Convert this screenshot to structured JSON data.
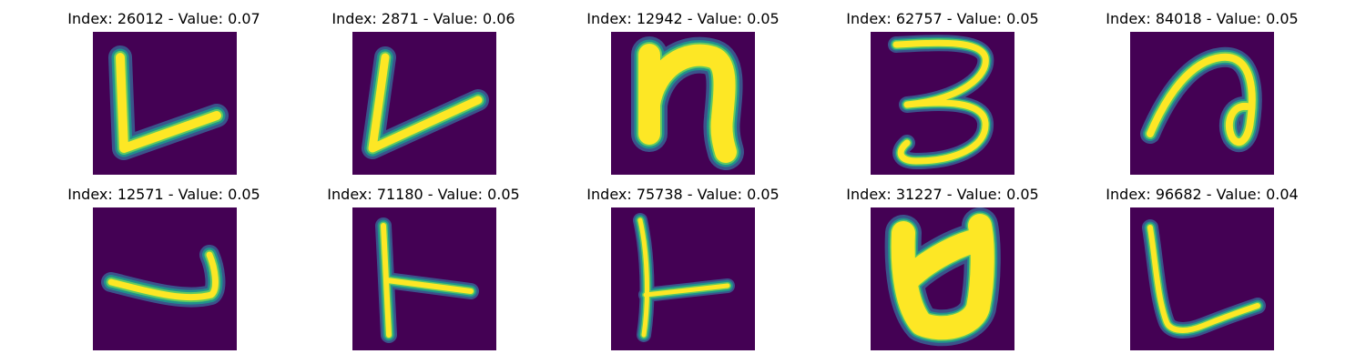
{
  "colors": {
    "background": "#ffffff",
    "image_background": "#440154",
    "stroke_core": "#fde725",
    "stroke_mid": "#5ec962",
    "stroke_edge": "#21918c",
    "stroke_halo": "#3b528b"
  },
  "panels": [
    {
      "title": "Index: 26012 - Value: 0.07"
    },
    {
      "title": "Index: 2871 - Value: 0.06"
    },
    {
      "title": "Index: 12942 - Value: 0.05"
    },
    {
      "title": "Index: 62757 - Value: 0.05"
    },
    {
      "title": "Index: 84018 - Value: 0.05"
    },
    {
      "title": "Index: 12571 - Value: 0.05"
    },
    {
      "title": "Index: 71180 - Value: 0.05"
    },
    {
      "title": "Index: 75738 - Value: 0.05"
    },
    {
      "title": "Index: 31227 - Value: 0.05"
    },
    {
      "title": "Index: 96682 - Value: 0.04"
    }
  ]
}
